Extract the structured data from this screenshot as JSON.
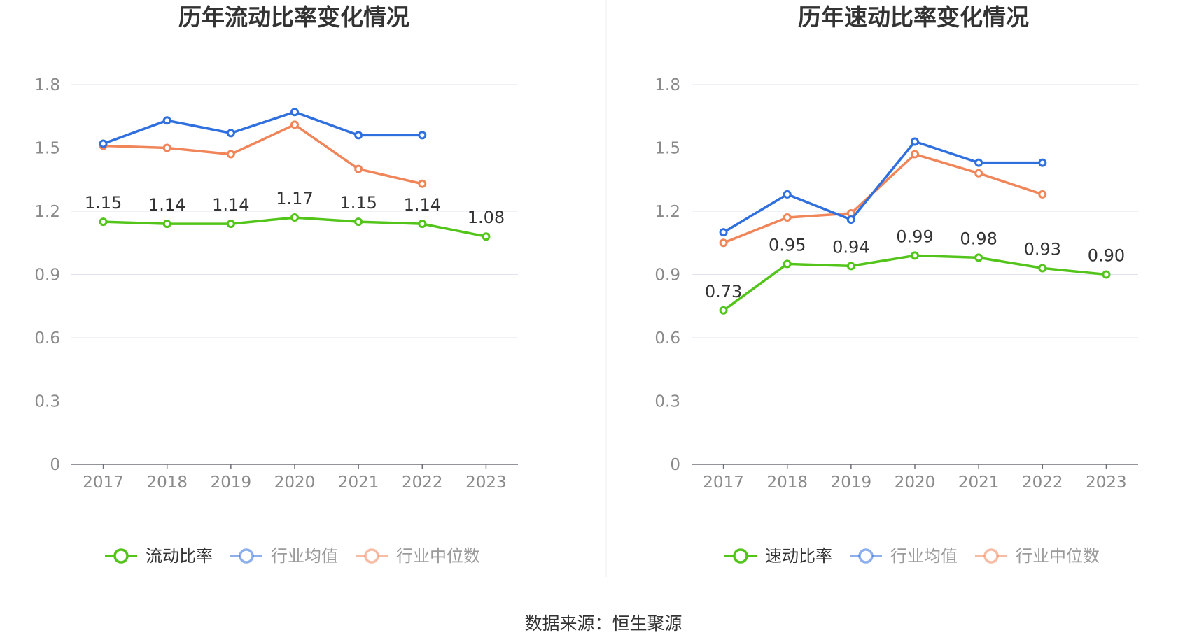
{
  "source_text": "数据来源：恒生聚源",
  "chart_data": [
    {
      "type": "line",
      "title": "历年流动比率变化情况",
      "categories": [
        "2017",
        "2018",
        "2019",
        "2020",
        "2021",
        "2022",
        "2023"
      ],
      "y_ticks": [
        "0",
        "0.3",
        "0.6",
        "0.9",
        "1.2",
        "1.5",
        "1.8"
      ],
      "ylim": [
        0,
        1.8
      ],
      "grid": true,
      "legend_position": "bottom",
      "series": [
        {
          "name": "流动比率",
          "color": "#52c41a",
          "values": [
            1.15,
            1.14,
            1.14,
            1.17,
            1.15,
            1.14,
            1.08
          ],
          "labels": [
            "1.15",
            "1.14",
            "1.14",
            "1.17",
            "1.15",
            "1.14",
            "1.08"
          ]
        },
        {
          "name": "行业均值",
          "color": "#2f6fde",
          "values": [
            1.52,
            1.63,
            1.57,
            1.67,
            1.56,
            1.56,
            null
          ]
        },
        {
          "name": "行业中位数",
          "color": "#f0855a",
          "values": [
            1.51,
            1.5,
            1.47,
            1.61,
            1.4,
            1.33,
            null
          ]
        }
      ]
    },
    {
      "type": "line",
      "title": "历年速动比率变化情况",
      "categories": [
        "2017",
        "2018",
        "2019",
        "2020",
        "2021",
        "2022",
        "2023"
      ],
      "y_ticks": [
        "0",
        "0.3",
        "0.6",
        "0.9",
        "1.2",
        "1.5",
        "1.8"
      ],
      "ylim": [
        0,
        1.8
      ],
      "grid": true,
      "legend_position": "bottom",
      "series": [
        {
          "name": "速动比率",
          "color": "#52c41a",
          "values": [
            0.73,
            0.95,
            0.94,
            0.99,
            0.98,
            0.93,
            0.9
          ],
          "labels": [
            "0.73",
            "0.95",
            "0.94",
            "0.99",
            "0.98",
            "0.93",
            "0.90"
          ]
        },
        {
          "name": "行业均值",
          "color": "#2f6fde",
          "values": [
            1.1,
            1.28,
            1.16,
            1.53,
            1.43,
            1.43,
            null
          ]
        },
        {
          "name": "行业中位数",
          "color": "#f0855a",
          "values": [
            1.05,
            1.17,
            1.19,
            1.47,
            1.38,
            1.28,
            null
          ]
        }
      ]
    }
  ]
}
